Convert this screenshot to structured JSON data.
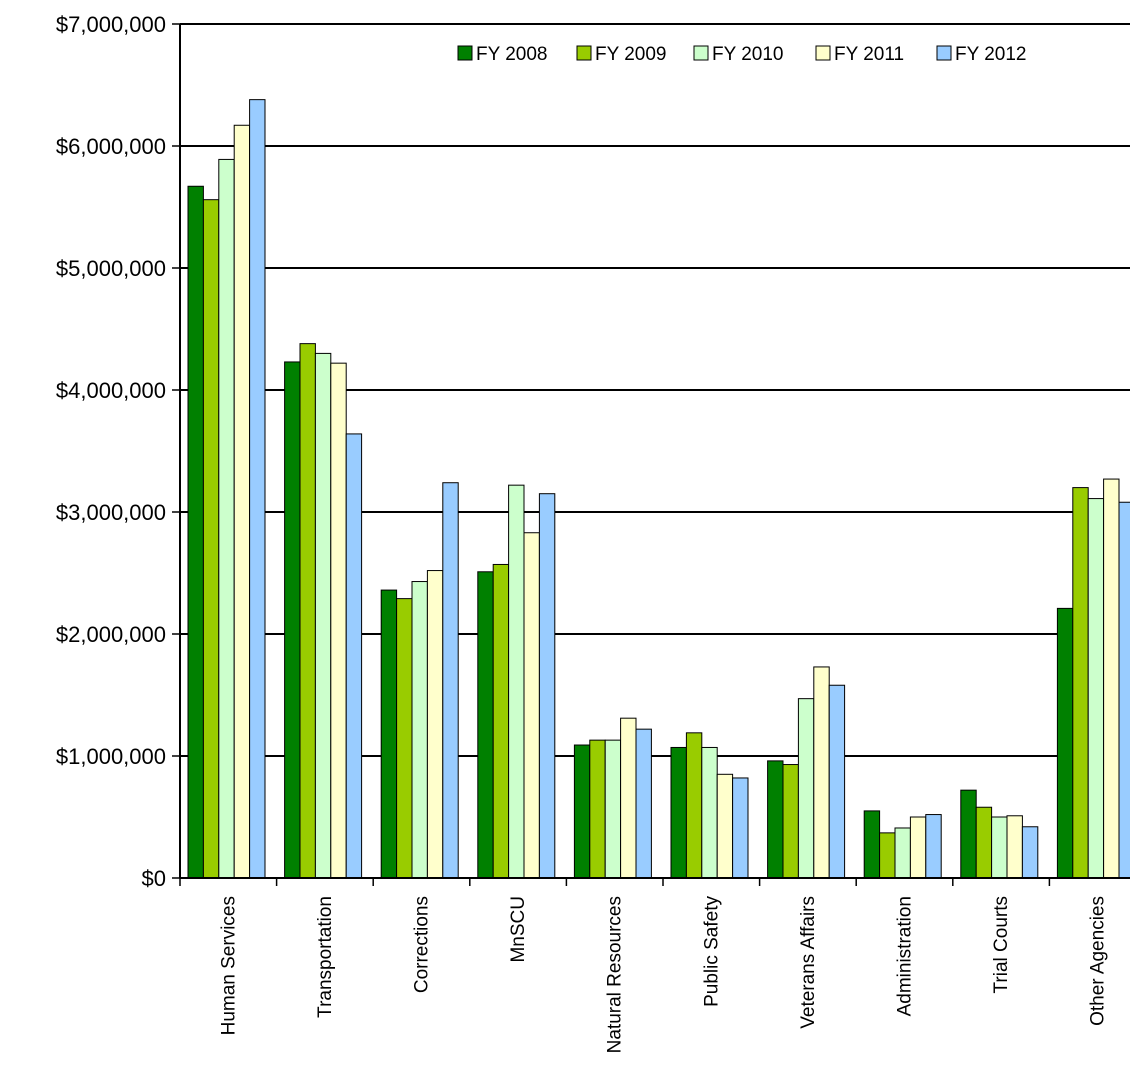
{
  "chart_data": {
    "type": "bar",
    "title": "",
    "xlabel": "",
    "ylabel": "",
    "ylim": [
      0,
      7000000
    ],
    "y_ticks": [
      {
        "value": 0,
        "label": "$0"
      },
      {
        "value": 1000000,
        "label": "$1,000,000"
      },
      {
        "value": 2000000,
        "label": "$2,000,000"
      },
      {
        "value": 3000000,
        "label": "$3,000,000"
      },
      {
        "value": 4000000,
        "label": "$4,000,000"
      },
      {
        "value": 5000000,
        "label": "$5,000,000"
      },
      {
        "value": 6000000,
        "label": "$6,000,000"
      },
      {
        "value": 7000000,
        "label": "$7,000,000"
      }
    ],
    "grid": true,
    "legend_position": "top-right",
    "categories": [
      "Human Services",
      "Transportation",
      "Corrections",
      "MnSCU",
      "Natural Resources",
      "Public Safety",
      "Veterans Affairs",
      "Administration",
      "Trial Courts",
      "Other Agencies"
    ],
    "series": [
      {
        "name": "FY 2008",
        "color": "#008000",
        "values": [
          5670000,
          4230000,
          2360000,
          2510000,
          1090000,
          1070000,
          960000,
          550000,
          720000,
          2210000
        ]
      },
      {
        "name": "FY 2009",
        "color": "#99CC00",
        "values": [
          5560000,
          4380000,
          2290000,
          2570000,
          1130000,
          1190000,
          930000,
          370000,
          580000,
          3200000
        ]
      },
      {
        "name": "FY 2010",
        "color": "#CCFFCC",
        "values": [
          5890000,
          4300000,
          2430000,
          3220000,
          1130000,
          1070000,
          1470000,
          410000,
          500000,
          3110000
        ]
      },
      {
        "name": "FY 2011",
        "color": "#FFFFCC",
        "values": [
          6170000,
          4220000,
          2520000,
          2830000,
          1310000,
          850000,
          1730000,
          500000,
          510000,
          3270000
        ]
      },
      {
        "name": "FY 2012",
        "color": "#99CCFF",
        "values": [
          6380000,
          3640000,
          3240000,
          3150000,
          1220000,
          820000,
          1580000,
          520000,
          420000,
          3080000
        ]
      }
    ]
  }
}
